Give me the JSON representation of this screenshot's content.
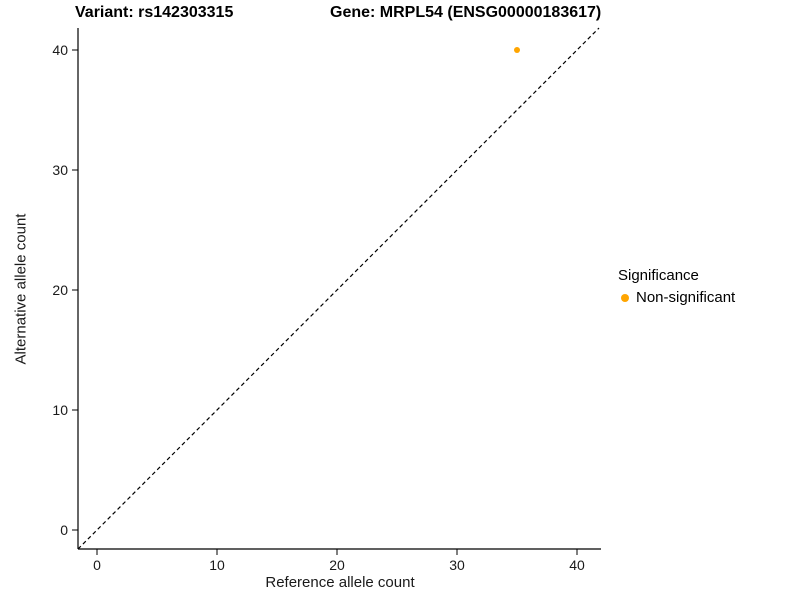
{
  "chart_data": {
    "type": "scatter",
    "title_left": "Variant: rs142303315",
    "title_right": "Gene: MRPL54 (ENSG00000183617)",
    "xlabel": "Reference allele count",
    "ylabel": "Alternative allele count",
    "xlim": [
      0,
      40
    ],
    "ylim": [
      0,
      40
    ],
    "x_ticks": [
      0,
      10,
      20,
      30,
      40
    ],
    "y_ticks": [
      0,
      10,
      20,
      30,
      40
    ],
    "grid": false,
    "reference_line": {
      "type": "identity",
      "style": "dashed",
      "color": "#000000"
    },
    "series": [
      {
        "name": "Non-significant",
        "color": "#FFA500",
        "points": [
          {
            "x": 35,
            "y": 40
          }
        ]
      }
    ],
    "legend": {
      "title": "Significance",
      "position": "right",
      "items": [
        {
          "label": "Non-significant",
          "color": "#FFA500"
        }
      ]
    }
  }
}
